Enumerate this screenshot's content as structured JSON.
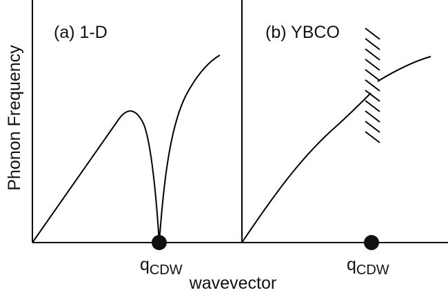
{
  "figure": {
    "ylabel": "Phonon Frequency",
    "xlabel": "wavevector",
    "colors": {
      "line": "#000000",
      "text": "#111111",
      "marker": "#111111",
      "background": "#ffffff"
    },
    "panels": [
      {
        "title": "(a) 1-D",
        "q_label": "q",
        "q_subscript": "CDW"
      },
      {
        "title": "(b) YBCO",
        "q_label": "q",
        "q_subscript": "CDW"
      }
    ]
  }
}
